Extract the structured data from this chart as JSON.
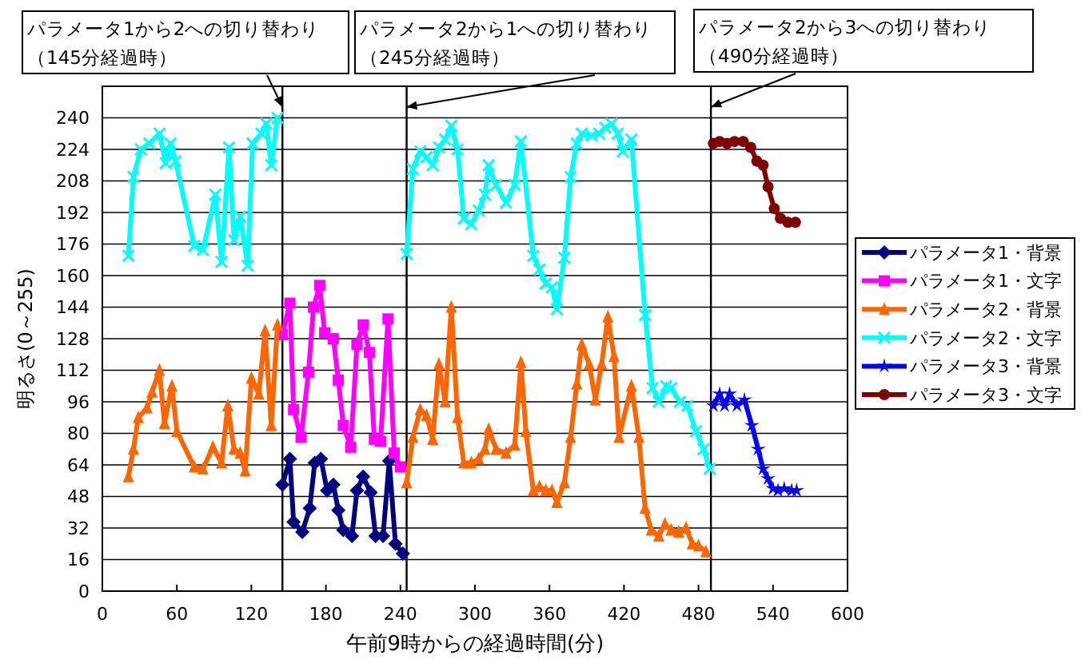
{
  "chart_data": {
    "type": "line",
    "xlabel": "午前9時からの経過時間(分)",
    "ylabel": "明るさ(0～255)",
    "xlim": [
      0,
      600
    ],
    "xticks": [
      0,
      60,
      120,
      180,
      240,
      300,
      360,
      420,
      480,
      540,
      600
    ],
    "ylim": [
      0,
      256
    ],
    "yticks": [
      0,
      16,
      32,
      48,
      64,
      80,
      96,
      112,
      128,
      144,
      160,
      176,
      192,
      208,
      224,
      240
    ],
    "grid": "y",
    "legend": "right",
    "line_style": "solid",
    "ref_lines": [
      {
        "axis": "x",
        "value": 145,
        "label": "パラメータ1から2への切り替わり（145分経過時）",
        "color": "#000000"
      },
      {
        "axis": "x",
        "value": 245,
        "label": "パラメータ2から1への切り替わり（245分経過時）",
        "color": "#000000"
      },
      {
        "axis": "x",
        "value": 490,
        "label": "パラメータ2から3への切り替わり（490分経過時）",
        "color": "#000000"
      }
    ],
    "series": [
      {
        "name": "パラメータ1・背景",
        "color": "#000080",
        "marker": "diamond",
        "x": [
          145,
          151,
          154,
          161,
          167,
          171,
          176,
          181,
          186,
          190,
          194,
          201,
          205,
          210,
          216,
          220,
          226,
          231,
          236,
          242
        ],
        "values": [
          54,
          67,
          35,
          30,
          42,
          65,
          67,
          51,
          54,
          41,
          31,
          28,
          51,
          58,
          50,
          28,
          28,
          66,
          24,
          19
        ]
      },
      {
        "name": "パラメータ1・文字",
        "color": "#ff00ff",
        "marker": "square",
        "x": [
          145,
          151,
          154,
          160,
          166,
          170,
          175,
          179,
          186,
          190,
          194,
          200,
          205,
          210,
          215,
          219,
          224,
          230,
          235,
          240
        ],
        "values": [
          130,
          146,
          92,
          78,
          111,
          144,
          155,
          131,
          128,
          107,
          84,
          73,
          125,
          135,
          121,
          77,
          76,
          138,
          70,
          63
        ]
      },
      {
        "name": "パラメータ2・背景",
        "color": "#ff6600",
        "marker": "triangle",
        "x": [
          21,
          25,
          29,
          36,
          40,
          46,
          50,
          56,
          60,
          74,
          81,
          89,
          96,
          101,
          106,
          111,
          115,
          120,
          126,
          131,
          136,
          141,
          193,
          245,
          250,
          256,
          261,
          266,
          271,
          276,
          281,
          286,
          291,
          297,
          303,
          308,
          311,
          317,
          325,
          332,
          337,
          341,
          347,
          352,
          357,
          362,
          366,
          372,
          377,
          382,
          386,
          392,
          397,
          402,
          407,
          412,
          416,
          426,
          432,
          437,
          442,
          448,
          453,
          458,
          464,
          470,
          475,
          480,
          486
        ],
        "values": [
          58,
          72,
          88,
          93,
          101,
          112,
          85,
          104,
          81,
          63,
          62,
          73,
          65,
          94,
          72,
          70,
          61,
          108,
          100,
          132,
          84,
          135,
          null,
          55,
          78,
          92,
          89,
          77,
          115,
          96,
          144,
          88,
          65,
          65,
          67,
          72,
          82,
          72,
          70,
          74,
          116,
          81,
          51,
          53,
          51,
          51,
          45,
          55,
          78,
          105,
          125,
          115,
          97,
          115,
          139,
          119,
          78,
          104,
          78,
          42,
          31,
          28,
          34,
          31,
          30,
          32,
          24,
          23,
          20
        ]
      },
      {
        "name": "パラメータ2・文字",
        "color": "#00ffff",
        "marker": "cross",
        "x": [
          21,
          25,
          31,
          38,
          46,
          51,
          55,
          59,
          74,
          81,
          91,
          96,
          102,
          106,
          111,
          117,
          121,
          128,
          132,
          136,
          141,
          193,
          245,
          250,
          256,
          261,
          266,
          271,
          276,
          281,
          286,
          291,
          297,
          303,
          308,
          311,
          317,
          325,
          332,
          337,
          347,
          352,
          357,
          362,
          366,
          372,
          377,
          382,
          386,
          394,
          400,
          405,
          410,
          415,
          419,
          426,
          437,
          443,
          448,
          454,
          458,
          465,
          471,
          478,
          484,
          489
        ],
        "values": [
          170,
          210,
          224,
          227,
          232,
          217,
          227,
          218,
          175,
          173,
          201,
          167,
          225,
          178,
          190,
          165,
          227,
          232,
          237,
          216,
          240,
          null,
          171,
          214,
          223,
          220,
          216,
          225,
          229,
          236,
          224,
          189,
          186,
          193,
          201,
          216,
          206,
          197,
          206,
          228,
          170,
          163,
          156,
          154,
          143,
          169,
          210,
          227,
          232,
          231,
          232,
          235,
          237,
          232,
          223,
          229,
          140,
          103,
          96,
          104,
          103,
          96,
          94,
          81,
          72,
          62
        ]
      },
      {
        "name": "パラメータ3・背景",
        "color": "#0000ff",
        "marker": "star",
        "x": [
          492,
          497,
          501,
          505,
          511,
          517,
          523,
          528,
          532,
          536,
          540,
          544,
          549,
          555,
          559
        ],
        "values": [
          94,
          100,
          94,
          100,
          94,
          97,
          84,
          72,
          62,
          57,
          52,
          51,
          52,
          51,
          51
        ]
      },
      {
        "name": "パラメータ3・文字",
        "color": "#800000",
        "marker": "circle",
        "x": [
          492,
          497,
          503,
          509,
          516,
          522,
          527,
          532,
          536,
          541,
          546,
          552,
          558
        ],
        "values": [
          227,
          228,
          227,
          228,
          228,
          225,
          218,
          216,
          205,
          194,
          189,
          187,
          187
        ]
      }
    ]
  }
}
